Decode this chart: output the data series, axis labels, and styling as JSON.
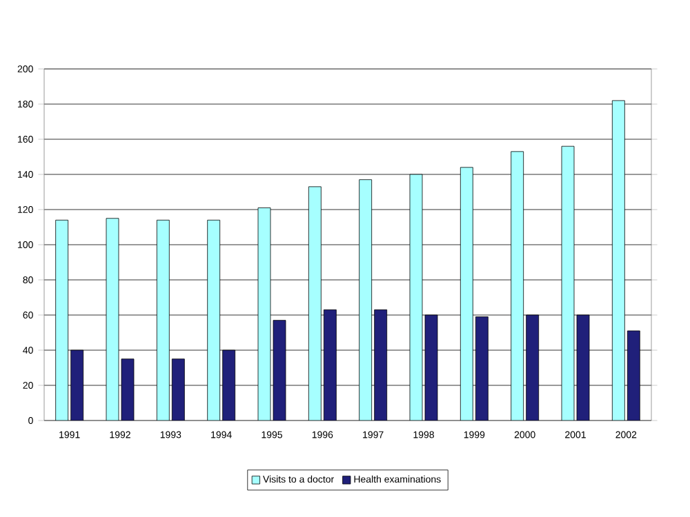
{
  "chart_data": {
    "type": "bar",
    "categories": [
      "1991",
      "1992",
      "1993",
      "1994",
      "1995",
      "1996",
      "1997",
      "1998",
      "1999",
      "2000",
      "2001",
      "2002"
    ],
    "series": [
      {
        "name": "Visits to a doctor",
        "color": "#a6ffff",
        "values": [
          114,
          115,
          114,
          114,
          121,
          133,
          137,
          140,
          144,
          153,
          156,
          182
        ]
      },
      {
        "name": "Health examinations",
        "color": "#20207a",
        "values": [
          40,
          35,
          35,
          40,
          57,
          63,
          63,
          60,
          59,
          60,
          60,
          51
        ]
      }
    ],
    "ylim": [
      0,
      200
    ],
    "yticks": [
      0,
      20,
      40,
      60,
      80,
      100,
      120,
      140,
      160,
      180,
      200
    ],
    "grid": "y",
    "legend": "bottom"
  }
}
